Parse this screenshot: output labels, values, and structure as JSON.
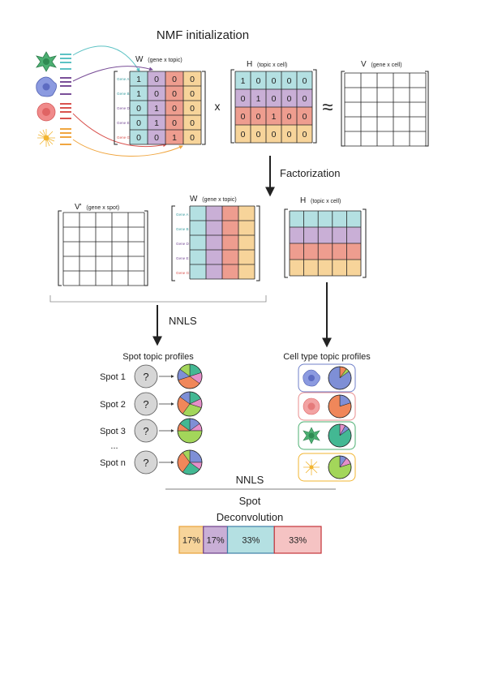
{
  "title": "NMF initialization",
  "w_matrix": {
    "label_main": "W",
    "label_sub": "(gene x topic)",
    "genes": [
      "Gene A",
      "Gene B",
      "Gene D",
      "Gene E",
      "Gene G"
    ],
    "values": [
      [
        1,
        0,
        0,
        0
      ],
      [
        1,
        0,
        0,
        0
      ],
      [
        0,
        1,
        0,
        0
      ],
      [
        0,
        1,
        0,
        0
      ],
      [
        0,
        0,
        1,
        0
      ]
    ]
  },
  "times_symbol": "x",
  "h_matrix": {
    "label_main": "H",
    "label_sub": "(topic x cell)",
    "values": [
      [
        1,
        0,
        0,
        0,
        0
      ],
      [
        0,
        1,
        0,
        0,
        0
      ],
      [
        0,
        0,
        1,
        0,
        0
      ],
      [
        0,
        0,
        0,
        0,
        0
      ]
    ]
  },
  "approx_symbol": "≈",
  "v_matrix": {
    "label_main": "V",
    "label_sub": "(gene x cell)"
  },
  "factorization_label": "Factorization",
  "v_prime": {
    "label_main": "V'",
    "label_sub": "(gene x spot)"
  },
  "w2": {
    "label_main": "W",
    "label_sub": "(gene x topic)",
    "genes": [
      "Gene A",
      "Gene B",
      "Gene D",
      "Gene E",
      "Gene G"
    ]
  },
  "h2": {
    "label_main": "H",
    "label_sub": "(topic x cell)"
  },
  "nnls_label_1": "NNLS",
  "spot_profiles_title": "Spot topic profiles",
  "spots": [
    "Spot 1",
    "Spot 2",
    "Spot 3",
    "Spot n"
  ],
  "ellipsis": "...",
  "unknown_symbol": "?",
  "celltype_profiles_title": "Cell type topic profiles",
  "nnls_label_2": "NNLS",
  "spot_label": "Spot",
  "deconvolution_label": "Deconvolution",
  "result_bar": [
    {
      "label": "17%",
      "fraction": 0.17,
      "fill": "#f7d49a",
      "stroke": "#e8a23a"
    },
    {
      "label": "17%",
      "fraction": 0.17,
      "fill": "#c9afd6",
      "stroke": "#6d3f8a"
    },
    {
      "label": "33%",
      "fraction": 0.33,
      "fill": "#b4e0e2",
      "stroke": "#3e7fa6"
    },
    {
      "label": "33%",
      "fraction": 0.33,
      "fill": "#f5c3c3",
      "stroke": "#c4343a"
    }
  ],
  "colors": {
    "teal": "#b4e0e2",
    "purple": "#c9afd6",
    "salmon": "#ee9d8f",
    "peach": "#f7d49a",
    "green_cell": "#4caf72",
    "blue_cell": "#7e8fd6",
    "pink_cell": "#f08a8a",
    "yellow_cell": "#f2b531"
  }
}
